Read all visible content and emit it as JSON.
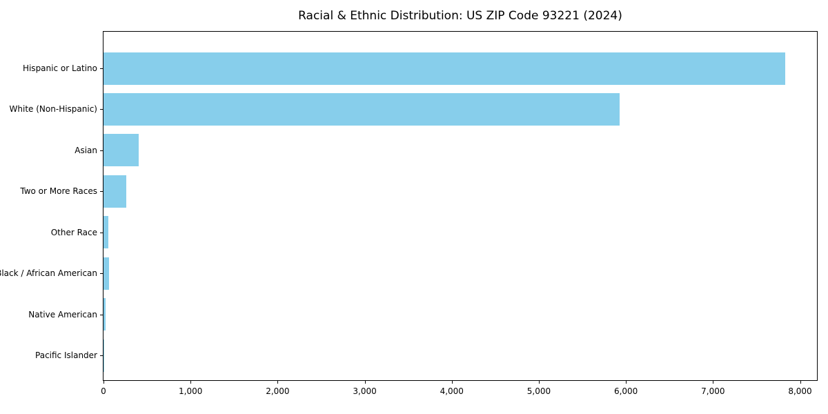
{
  "chart_data": {
    "type": "bar",
    "orientation": "horizontal",
    "title": "Racial & Ethnic Distribution: US ZIP Code 93221 (2024)",
    "categories": [
      "Hispanic or Latino",
      "White (Non-Hispanic)",
      "Asian",
      "Two or More Races",
      "Other Race",
      "Black / African American",
      "Native American",
      "Pacific Islander"
    ],
    "values": [
      7830,
      5930,
      405,
      260,
      55,
      60,
      25,
      5
    ],
    "xlabel": "",
    "ylabel": "",
    "xlim": [
      0,
      8210
    ],
    "xticks": [
      {
        "value": 0,
        "label": "0"
      },
      {
        "value": 1000,
        "label": "1,000"
      },
      {
        "value": 2000,
        "label": "2,000"
      },
      {
        "value": 3000,
        "label": "3,000"
      },
      {
        "value": 4000,
        "label": "4,000"
      },
      {
        "value": 5000,
        "label": "5,000"
      },
      {
        "value": 6000,
        "label": "6,000"
      },
      {
        "value": 7000,
        "label": "7,000"
      },
      {
        "value": 8000,
        "label": "8,000"
      }
    ],
    "bar_color": "#87CEEB",
    "grid": false,
    "legend_position": "none"
  }
}
